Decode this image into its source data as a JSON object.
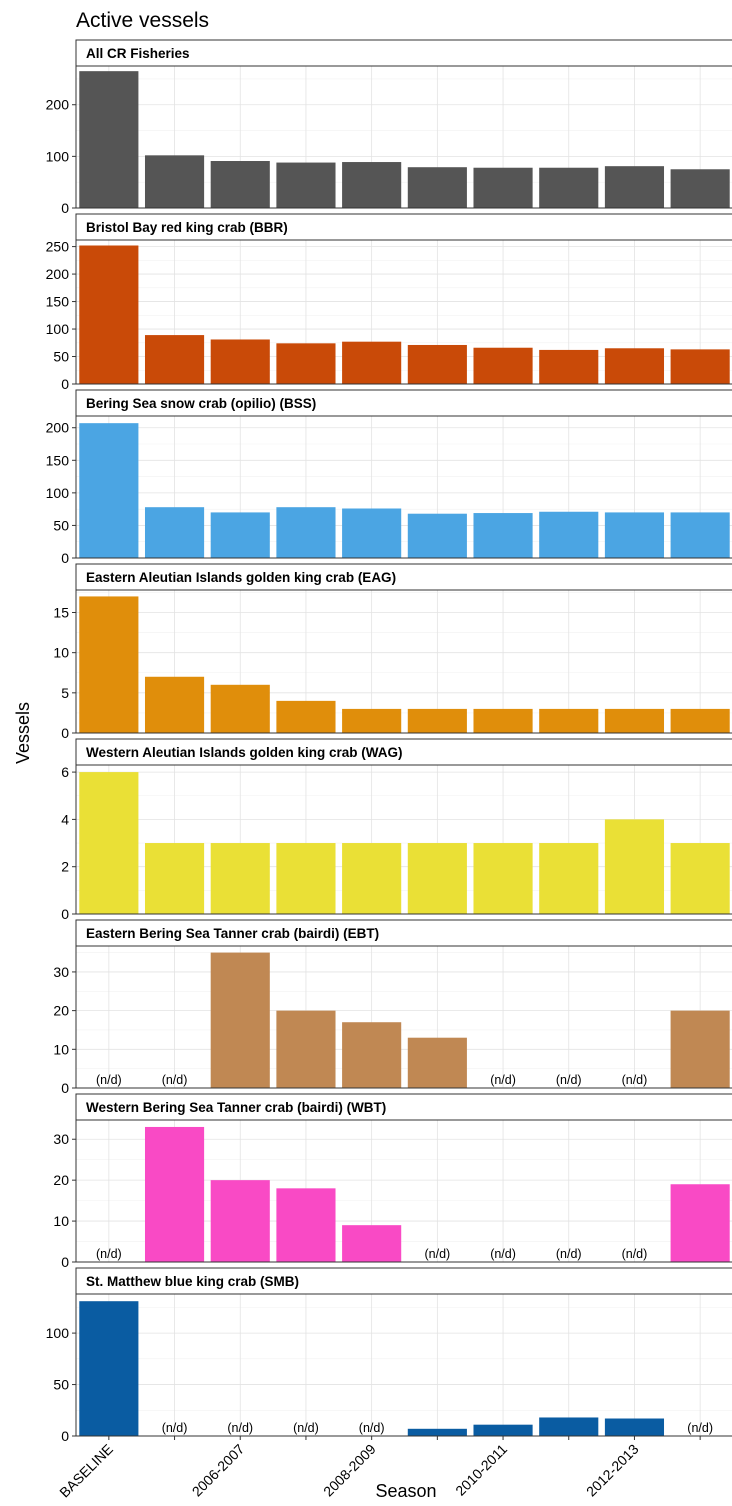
{
  "chart_data": {
    "type": "bar",
    "title": "Active vessels",
    "xlabel": "Season",
    "ylabel": "Vessels",
    "categories": [
      "BASELINE",
      "",
      "2006-2007",
      "",
      "2008-2009",
      "",
      "2010-2011",
      "",
      "2012-2013",
      ""
    ],
    "x_tick_labels": [
      "BASELINE",
      "2006-2007",
      "2008-2009",
      "2010-2011",
      "2012-2013"
    ],
    "missing_label": "(n/d)",
    "grid": true,
    "panels": [
      {
        "name": "All CR Fisheries",
        "color": "#555555",
        "ylim": [
          0,
          275
        ],
        "yticks": [
          0,
          100,
          200
        ],
        "values": [
          265,
          102,
          91,
          88,
          89,
          79,
          78,
          78,
          81,
          75
        ]
      },
      {
        "name": "Bristol Bay red king crab (BBR)",
        "color": "#C94A08",
        "ylim": [
          0,
          262
        ],
        "yticks": [
          0,
          50,
          100,
          150,
          200,
          250
        ],
        "values": [
          252,
          89,
          81,
          74,
          77,
          71,
          66,
          62,
          65,
          63
        ]
      },
      {
        "name": "Bering Sea snow crab (opilio) (BSS)",
        "color": "#4BA5E3",
        "ylim": [
          0,
          218
        ],
        "yticks": [
          0,
          50,
          100,
          150,
          200
        ],
        "values": [
          207,
          78,
          70,
          78,
          76,
          68,
          69,
          71,
          70,
          70
        ]
      },
      {
        "name": "Eastern Aleutian Islands golden king crab (EAG)",
        "color": "#E08E0B",
        "ylim": [
          0,
          17.8
        ],
        "yticks": [
          0,
          5,
          10,
          15
        ],
        "values": [
          17,
          7,
          6,
          4,
          3,
          3,
          3,
          3,
          3,
          3
        ]
      },
      {
        "name": "Western Aleutian Islands golden king crab (WAG)",
        "color": "#EAE036",
        "ylim": [
          0,
          6.3
        ],
        "yticks": [
          0,
          2,
          4,
          6
        ],
        "values": [
          6,
          3,
          3,
          3,
          3,
          3,
          3,
          3,
          4,
          3
        ]
      },
      {
        "name": "Eastern Bering Sea Tanner crab (bairdi) (EBT)",
        "color": "#C08853",
        "ylim": [
          0,
          36.7
        ],
        "yticks": [
          0,
          10,
          20,
          30
        ],
        "values": [
          null,
          null,
          35,
          20,
          17,
          13,
          null,
          null,
          null,
          20
        ]
      },
      {
        "name": "Western Bering Sea Tanner crab (bairdi) (WBT)",
        "color": "#F94AC5",
        "ylim": [
          0,
          34.7
        ],
        "yticks": [
          0,
          10,
          20,
          30
        ],
        "values": [
          null,
          33,
          20,
          18,
          9,
          null,
          null,
          null,
          null,
          19
        ]
      },
      {
        "name": "St. Matthew blue king crab (SMB)",
        "color": "#0A5CA2",
        "ylim": [
          0,
          138
        ],
        "yticks": [
          0,
          50,
          100
        ],
        "values": [
          131,
          null,
          null,
          null,
          null,
          7,
          11,
          18,
          17,
          null
        ]
      }
    ]
  }
}
